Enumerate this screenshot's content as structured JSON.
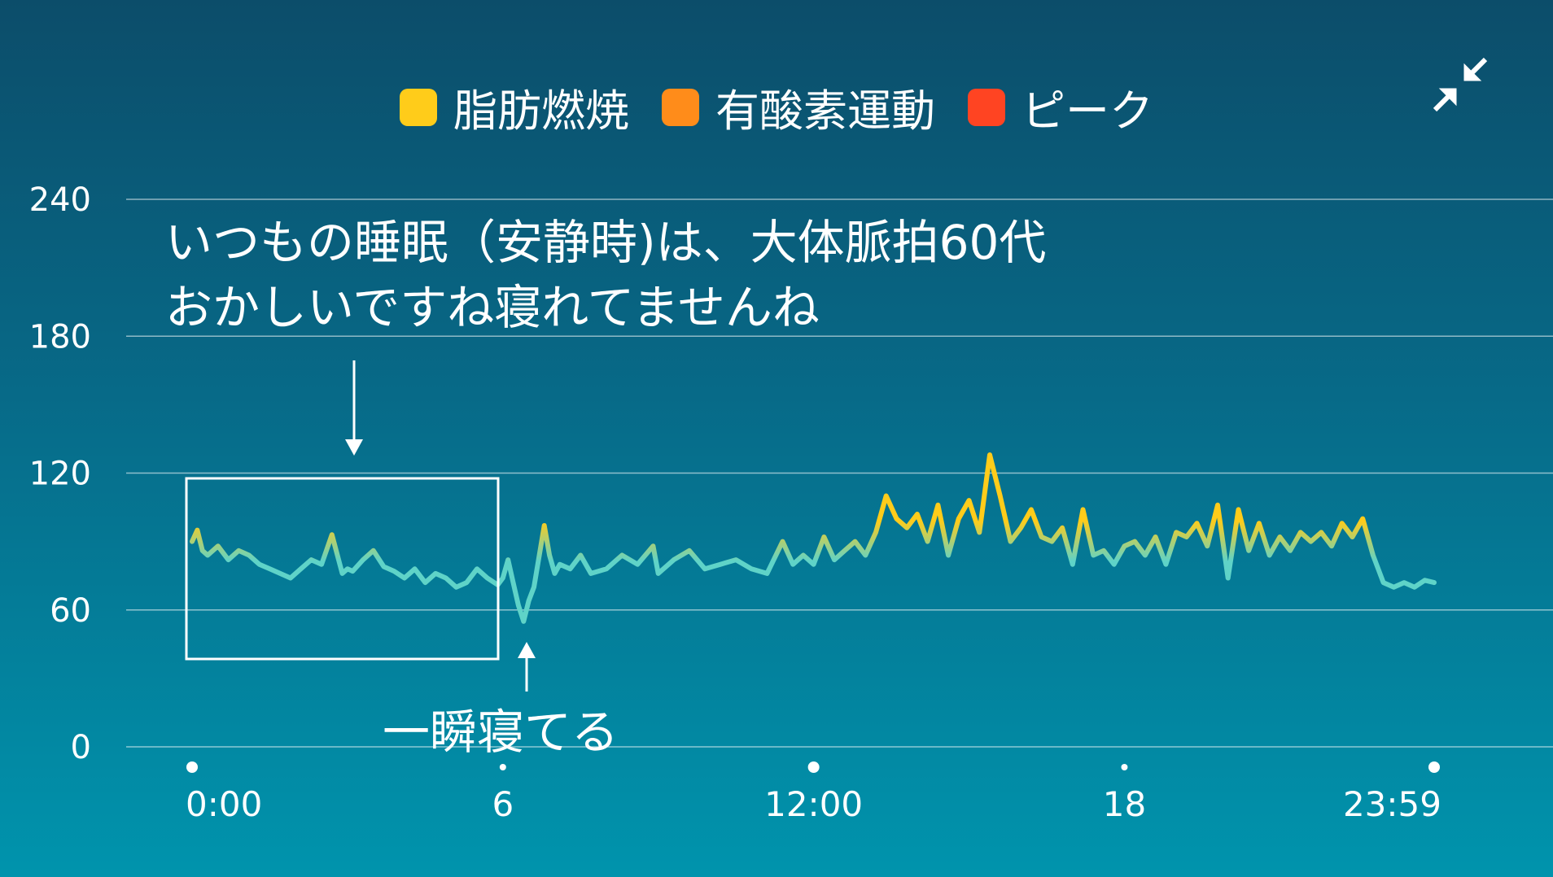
{
  "legend": [
    {
      "label": "脂肪燃焼",
      "color": "#ffcc1a"
    },
    {
      "label": "有酸素運動",
      "color": "#ff8c1a"
    },
    {
      "label": "ピーク",
      "color": "#ff4422"
    }
  ],
  "collapse_icon": "collapse-arrows-icon",
  "annotations": {
    "note_line1": "いつもの睡眠（安静時)は、大体脈拍60代",
    "note_line2": "おかしいですね寝れてませんね",
    "dip_note": "一瞬寝てる"
  },
  "chart_data": {
    "type": "line",
    "ylim": [
      0,
      240
    ],
    "yticks": [
      "0",
      "60",
      "120",
      "180",
      "240"
    ],
    "xticks": [
      "0:00",
      "6",
      "12:00",
      "18",
      "23:59"
    ],
    "xlim_hours": [
      0,
      23.98
    ],
    "line_color_low": "#5fd3c8",
    "line_color_high": "#ffcc1a",
    "series": [
      {
        "x": [
          0,
          0.1,
          0.2,
          0.3,
          0.5,
          0.7,
          0.9,
          1.1,
          1.3,
          1.5,
          1.7,
          1.9,
          2.1,
          2.3,
          2.5,
          2.7,
          2.9,
          3.0,
          3.1,
          3.3,
          3.5,
          3.7,
          3.9,
          4.1,
          4.3,
          4.5,
          4.7,
          4.9,
          5.1,
          5.3,
          5.5,
          5.7,
          5.9,
          6.0,
          6.1,
          6.2,
          6.3,
          6.4,
          6.5,
          6.6,
          6.8,
          6.9,
          7.0,
          7.1,
          7.3,
          7.5,
          7.7,
          8.0,
          8.3,
          8.6,
          8.9,
          9.0,
          9.3,
          9.6,
          9.9,
          10.2,
          10.5,
          10.8,
          11.1,
          11.4,
          11.6,
          11.8,
          12.0,
          12.2,
          12.4,
          12.6,
          12.8,
          13.0,
          13.2,
          13.4,
          13.6,
          13.8,
          14.0,
          14.2,
          14.4,
          14.6,
          14.8,
          15.0,
          15.2,
          15.4,
          15.6,
          15.8,
          16.0,
          16.2,
          16.4,
          16.6,
          16.8,
          17.0,
          17.2,
          17.4,
          17.6,
          17.8,
          18.0,
          18.2,
          18.4,
          18.6,
          18.8,
          19.0,
          19.2,
          19.4,
          19.6,
          19.8,
          20.0,
          20.2,
          20.4,
          20.6,
          20.8,
          21.0,
          21.2,
          21.4,
          21.6,
          21.8,
          22.0,
          22.2,
          22.4,
          22.6,
          22.8,
          23.0,
          23.2,
          23.4,
          23.6,
          23.8,
          23.98
        ],
        "values": [
          90,
          95,
          86,
          84,
          88,
          82,
          86,
          84,
          80,
          78,
          76,
          74,
          78,
          82,
          80,
          93,
          76,
          78,
          77,
          82,
          86,
          79,
          77,
          74,
          78,
          72,
          76,
          74,
          70,
          72,
          78,
          74,
          71,
          74,
          82,
          72,
          62,
          55,
          64,
          70,
          97,
          84,
          76,
          80,
          78,
          84,
          76,
          78,
          84,
          80,
          88,
          76,
          82,
          86,
          78,
          80,
          82,
          78,
          76,
          90,
          80,
          84,
          80,
          92,
          82,
          86,
          90,
          84,
          94,
          110,
          100,
          96,
          102,
          90,
          106,
          84,
          100,
          108,
          94,
          128,
          110,
          90,
          96,
          104,
          92,
          90,
          96,
          80,
          104,
          84,
          86,
          80,
          88,
          90,
          84,
          92,
          80,
          94,
          92,
          98,
          88,
          106,
          74,
          104,
          86,
          98,
          84,
          92,
          86,
          94,
          90,
          94,
          88,
          98,
          92,
          100,
          84,
          72,
          70,
          72,
          70,
          73,
          72
        ]
      }
    ]
  }
}
